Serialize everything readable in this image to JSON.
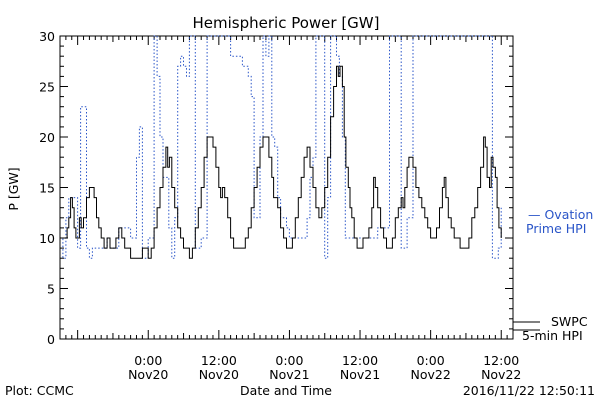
{
  "chart_data": {
    "type": "line",
    "title": "Hemispheric Power [GW]",
    "ylabel": "P [GW]",
    "xlabel": "Date and Time",
    "ylim": [
      0,
      30
    ],
    "xlim": [
      "2016-11-19 09:00",
      "2016-11-22 14:00"
    ],
    "yticks": [
      0,
      5,
      10,
      15,
      20,
      25,
      30
    ],
    "xticks": [
      {
        "t": 15,
        "label1": "0:00",
        "label2": "Nov20"
      },
      {
        "t": 27,
        "label1": "12:00",
        "label2": "Nov20"
      },
      {
        "t": 39,
        "label1": "0:00",
        "label2": "Nov21"
      },
      {
        "t": 51,
        "label1": "12:00",
        "label2": "Nov21"
      },
      {
        "t": 63,
        "label1": "0:00",
        "label2": "Nov22"
      },
      {
        "t": 75,
        "label1": "12:00",
        "label2": "Nov22"
      }
    ],
    "grid": false,
    "series": [
      {
        "name": "SWPC 5-min HPI",
        "color": "#000000",
        "style": "solid",
        "points": [
          [
            0,
            10
          ],
          [
            0.8,
            10
          ],
          [
            1.2,
            11
          ],
          [
            1.5,
            12
          ],
          [
            1.8,
            14
          ],
          [
            2.1,
            13
          ],
          [
            2.4,
            11
          ],
          [
            2.7,
            10
          ],
          [
            3,
            10
          ],
          [
            3.3,
            12
          ],
          [
            3.6,
            11
          ],
          [
            4,
            12
          ],
          [
            4.5,
            14
          ],
          [
            5,
            15
          ],
          [
            5.4,
            15
          ],
          [
            5.8,
            14
          ],
          [
            6.2,
            12
          ],
          [
            6.6,
            11
          ],
          [
            7,
            10
          ],
          [
            7.5,
            9
          ],
          [
            8,
            10
          ],
          [
            8.5,
            9
          ],
          [
            9,
            9
          ],
          [
            9.5,
            10
          ],
          [
            10,
            11
          ],
          [
            10.5,
            10
          ],
          [
            11,
            9
          ],
          [
            11.5,
            9
          ],
          [
            12,
            8
          ],
          [
            12.5,
            8
          ],
          [
            13,
            8
          ],
          [
            13.5,
            8
          ],
          [
            14,
            9
          ],
          [
            14.5,
            9
          ],
          [
            15,
            8
          ],
          [
            15.5,
            9
          ],
          [
            16,
            11
          ],
          [
            16.5,
            13
          ],
          [
            17,
            15
          ],
          [
            17.5,
            17
          ],
          [
            18,
            19
          ],
          [
            18.3,
            17
          ],
          [
            18.6,
            18
          ],
          [
            19,
            15
          ],
          [
            19.5,
            13
          ],
          [
            20,
            11
          ],
          [
            20.5,
            10
          ],
          [
            21,
            9
          ],
          [
            21.5,
            9
          ],
          [
            22,
            8
          ],
          [
            22.5,
            9
          ],
          [
            23,
            11
          ],
          [
            23.5,
            13
          ],
          [
            24,
            15
          ],
          [
            24.5,
            18
          ],
          [
            25,
            20
          ],
          [
            25.5,
            20
          ],
          [
            26,
            19
          ],
          [
            26.5,
            17
          ],
          [
            27,
            15
          ],
          [
            27.3,
            14
          ],
          [
            27.6,
            15
          ],
          [
            28,
            14
          ],
          [
            28.5,
            12
          ],
          [
            29,
            10
          ],
          [
            29.5,
            9
          ],
          [
            30,
            9
          ],
          [
            31,
            9
          ],
          [
            31.5,
            10
          ],
          [
            32,
            11
          ],
          [
            32.5,
            13
          ],
          [
            33,
            15
          ],
          [
            33.5,
            17
          ],
          [
            34,
            19
          ],
          [
            34.5,
            20
          ],
          [
            35,
            20
          ],
          [
            35.5,
            18
          ],
          [
            36,
            16
          ],
          [
            36.3,
            14
          ],
          [
            36.6,
            14
          ],
          [
            37,
            13
          ],
          [
            37.5,
            11
          ],
          [
            38,
            10
          ],
          [
            38.5,
            9
          ],
          [
            39,
            9
          ],
          [
            39.5,
            10
          ],
          [
            40,
            12
          ],
          [
            40.5,
            14
          ],
          [
            41,
            16
          ],
          [
            41.5,
            18
          ],
          [
            42,
            19
          ],
          [
            42.5,
            17
          ],
          [
            43,
            15
          ],
          [
            43.5,
            13
          ],
          [
            44,
            12
          ],
          [
            44.5,
            13
          ],
          [
            45,
            15
          ],
          [
            45.5,
            18
          ],
          [
            46,
            22
          ],
          [
            46.5,
            25
          ],
          [
            47,
            27
          ],
          [
            47.3,
            26
          ],
          [
            47.6,
            27
          ],
          [
            48,
            25
          ],
          [
            48.3,
            20
          ],
          [
            48.6,
            17
          ],
          [
            49,
            15
          ],
          [
            49.3,
            13
          ],
          [
            49.6,
            12
          ],
          [
            50,
            10
          ],
          [
            50.5,
            9
          ],
          [
            51,
            9
          ],
          [
            51.5,
            10
          ],
          [
            52,
            10
          ],
          [
            52.5,
            11
          ],
          [
            53,
            13
          ],
          [
            53.3,
            16
          ],
          [
            53.6,
            15
          ],
          [
            54,
            13
          ],
          [
            54.5,
            11
          ],
          [
            55,
            10
          ],
          [
            55.5,
            9
          ],
          [
            56,
            9
          ],
          [
            56.5,
            10
          ],
          [
            57,
            12
          ],
          [
            57.5,
            13
          ],
          [
            58,
            14
          ],
          [
            58.3,
            13
          ],
          [
            58.6,
            15
          ],
          [
            59,
            17
          ],
          [
            59.3,
            18
          ],
          [
            59.6,
            18
          ],
          [
            60,
            17
          ],
          [
            60.5,
            15
          ],
          [
            61,
            14
          ],
          [
            61.5,
            13
          ],
          [
            62,
            12
          ],
          [
            62.5,
            11
          ],
          [
            63,
            10
          ],
          [
            63.5,
            10
          ],
          [
            64,
            11
          ],
          [
            64.5,
            13
          ],
          [
            65,
            15
          ],
          [
            65.3,
            16
          ],
          [
            65.6,
            14
          ],
          [
            66,
            12
          ],
          [
            66.5,
            11
          ],
          [
            67,
            10
          ],
          [
            67.5,
            10
          ],
          [
            68,
            9
          ],
          [
            68.5,
            9
          ],
          [
            69,
            9
          ],
          [
            69.5,
            10
          ],
          [
            70,
            12
          ],
          [
            70.5,
            13
          ],
          [
            71,
            15
          ],
          [
            71.5,
            17
          ],
          [
            72,
            20
          ],
          [
            72.3,
            19
          ],
          [
            72.6,
            16
          ],
          [
            73,
            15
          ],
          [
            73.3,
            18
          ],
          [
            73.6,
            17
          ],
          [
            74,
            16
          ],
          [
            74.3,
            13
          ],
          [
            74.6,
            11
          ],
          [
            75,
            10
          ]
        ]
      },
      {
        "name": "Ovation Prime HPI",
        "color": "#2a55c8",
        "style": "dotted",
        "points": [
          [
            0,
            10
          ],
          [
            0.5,
            8
          ],
          [
            1,
            12
          ],
          [
            1.5,
            14
          ],
          [
            2,
            14
          ],
          [
            2.5,
            14
          ],
          [
            3,
            9
          ],
          [
            3.5,
            23
          ],
          [
            4,
            23
          ],
          [
            4.5,
            9
          ],
          [
            5,
            8
          ],
          [
            5.5,
            9
          ],
          [
            6,
            9
          ],
          [
            7,
            9
          ],
          [
            8,
            10
          ],
          [
            8.5,
            9
          ],
          [
            9,
            9
          ],
          [
            10,
            11
          ],
          [
            11,
            11
          ],
          [
            12,
            10
          ],
          [
            13,
            18
          ],
          [
            13.5,
            21
          ],
          [
            14,
            8
          ],
          [
            14.5,
            8
          ],
          [
            15,
            10
          ],
          [
            16,
            30
          ],
          [
            16.5,
            26
          ],
          [
            17,
            20
          ],
          [
            17.5,
            16
          ],
          [
            18,
            16
          ],
          [
            18.5,
            11
          ],
          [
            19,
            8
          ],
          [
            19.5,
            12
          ],
          [
            20,
            27
          ],
          [
            20.5,
            28
          ],
          [
            21,
            27
          ],
          [
            21.5,
            26
          ],
          [
            22,
            30
          ],
          [
            22.5,
            30
          ],
          [
            23,
            9
          ],
          [
            24,
            10
          ],
          [
            25,
            30
          ],
          [
            25.5,
            30
          ],
          [
            26,
            30
          ],
          [
            27,
            30
          ],
          [
            28,
            30
          ],
          [
            29,
            28
          ],
          [
            30,
            28
          ],
          [
            31,
            27
          ],
          [
            32,
            26
          ],
          [
            32.5,
            24
          ],
          [
            33,
            12
          ],
          [
            33.5,
            12
          ],
          [
            34,
            20
          ],
          [
            34.5,
            30
          ],
          [
            35,
            28
          ],
          [
            35.5,
            30
          ],
          [
            36,
            20
          ],
          [
            36.5,
            19
          ],
          [
            37,
            14
          ],
          [
            37.5,
            12
          ],
          [
            38,
            12
          ],
          [
            38.5,
            11
          ],
          [
            39,
            10
          ],
          [
            40,
            10
          ],
          [
            41,
            10
          ],
          [
            42,
            12
          ],
          [
            42.5,
            16
          ],
          [
            43,
            18
          ],
          [
            43.5,
            30
          ],
          [
            44,
            30
          ],
          [
            44.5,
            30
          ],
          [
            45,
            8
          ],
          [
            45.5,
            14
          ],
          [
            46,
            30
          ],
          [
            46.5,
            30
          ],
          [
            47,
            28
          ],
          [
            47.5,
            26
          ],
          [
            48,
            20
          ],
          [
            48.5,
            10
          ],
          [
            49,
            10
          ],
          [
            50,
            10
          ],
          [
            51,
            10
          ],
          [
            52,
            10
          ],
          [
            53,
            10
          ],
          [
            54,
            11
          ],
          [
            55,
            11
          ],
          [
            56,
            30
          ],
          [
            57,
            30
          ],
          [
            58,
            9
          ],
          [
            59,
            12
          ],
          [
            60,
            30
          ],
          [
            60.5,
            30
          ],
          [
            61,
            30
          ],
          [
            62,
            30
          ],
          [
            62.5,
            30
          ],
          [
            63,
            30
          ],
          [
            64,
            30
          ],
          [
            65,
            30
          ],
          [
            66,
            30
          ],
          [
            67,
            30
          ],
          [
            68,
            30
          ],
          [
            69,
            30
          ],
          [
            70,
            30
          ],
          [
            71,
            30
          ],
          [
            72,
            30
          ],
          [
            73,
            30
          ],
          [
            73.5,
            8
          ],
          [
            74,
            8
          ],
          [
            74.5,
            9
          ],
          [
            75,
            13
          ]
        ]
      }
    ],
    "legend": [
      {
        "name_line1": "— Ovation",
        "name_line2": "Prime HPI",
        "color": "#2a55c8",
        "placement": "right"
      },
      {
        "name_line1": "SWPC",
        "name_line2": "5-min HPI",
        "color": "#000000",
        "placement": "bottom-right"
      }
    ]
  },
  "footer": {
    "left": "Plot: CCMC",
    "center": "Date and Time",
    "right": "2016/11/22 12:50:11"
  }
}
